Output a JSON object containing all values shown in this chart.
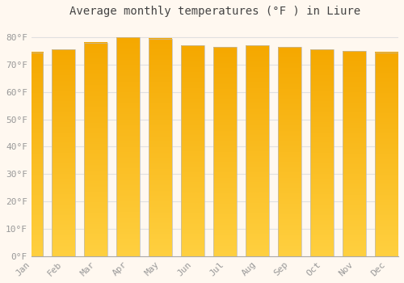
{
  "months": [
    "Jan",
    "Feb",
    "Mar",
    "Apr",
    "May",
    "Jun",
    "Jul",
    "Aug",
    "Sep",
    "Oct",
    "Nov",
    "Dec"
  ],
  "values": [
    74.5,
    75.5,
    78.0,
    80.0,
    79.5,
    77.0,
    76.5,
    77.0,
    76.5,
    75.5,
    75.0,
    74.5
  ],
  "bar_color_light": "#FFD040",
  "bar_color_dark": "#F5A800",
  "bar_edge_color": "#BBBBBB",
  "background_color": "#FFF8F0",
  "plot_bg_color": "#FFF8F0",
  "grid_color": "#E0E0E0",
  "title": "Average monthly temperatures (°F ) in Liure",
  "title_fontsize": 10,
  "ylabel_ticks": [
    0,
    10,
    20,
    30,
    40,
    50,
    60,
    70,
    80
  ],
  "ylim": [
    0,
    85
  ],
  "tick_label_color": "#999999",
  "font_family": "monospace"
}
